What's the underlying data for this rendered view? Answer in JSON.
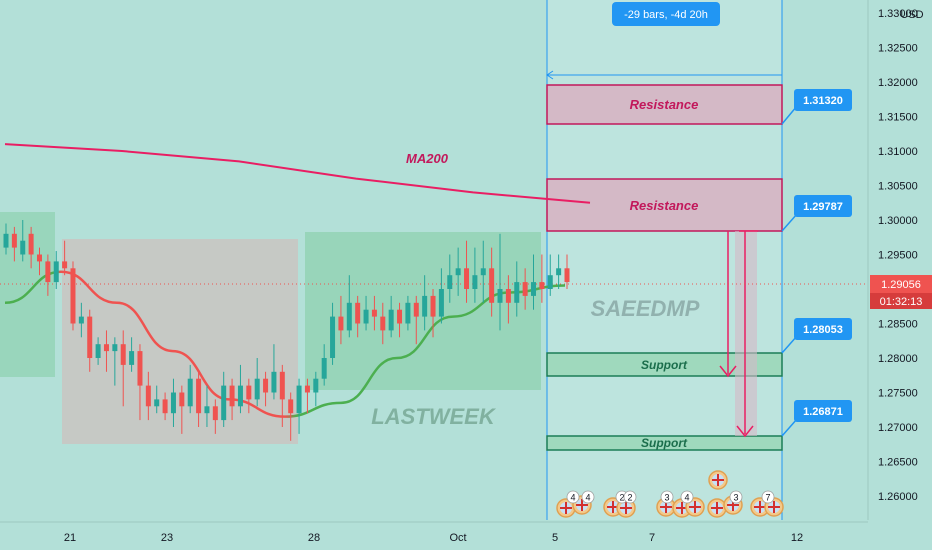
{
  "price_axis": {
    "currency": "USD",
    "ticks": [
      "1.33000",
      "1.32500",
      "1.32000",
      "1.31500",
      "1.31000",
      "1.30500",
      "1.30000",
      "1.29500",
      "1.29000",
      "1.28500",
      "1.28000",
      "1.27500",
      "1.27000",
      "1.26500",
      "1.26000"
    ],
    "current_price": "1.29056",
    "countdown": "01:32:13"
  },
  "time_axis": {
    "ticks": [
      "21",
      "23",
      "28",
      "Oct",
      "5",
      "7",
      "12"
    ]
  },
  "measure_label": "-29 bars, -4d 20h",
  "levels": [
    {
      "label": "Resistance",
      "value": "1.31320"
    },
    {
      "label": "Resistance",
      "value": "1.29787"
    },
    {
      "label": "Support",
      "value": "1.28053"
    },
    {
      "label": "Support",
      "value": "1.26871"
    }
  ],
  "annotations": {
    "ma_label": "MA200",
    "watermark": "SAEEDMP",
    "lastweek": "LASTWEEK"
  },
  "event_badges": [
    "4",
    "4",
    "2",
    "2",
    "3",
    "4",
    "3",
    "7"
  ],
  "colors": {
    "background": "#b3e0d8",
    "up": "#26a69a",
    "down": "#ef5350",
    "ma200": "#e91e63",
    "accent": "#2196f3",
    "current_price": "#ef5350"
  },
  "chart_data": {
    "type": "candlestick",
    "symbol_quote": "USD",
    "y_range": [
      1.255,
      1.331
    ],
    "x_labels": [
      "21",
      "23",
      "28",
      "Oct",
      "5",
      "7",
      "12"
    ],
    "series": [
      {
        "name": "MA200",
        "points": [
          1.311,
          1.31,
          1.3085,
          1.306,
          1.304,
          1.3025
        ]
      },
      {
        "name": "",
        "points": [
          1.288,
          1.2925,
          1.288,
          1.281,
          1.274,
          1.2715,
          1.2735,
          1.28,
          1.286,
          1.2895,
          1.2905
        ]
      }
    ],
    "candles": [
      [
        1.296,
        1.298,
        1.295,
        1.2995
      ],
      [
        1.298,
        1.296,
        1.294,
        1.299
      ],
      [
        1.295,
        1.297,
        1.294,
        1.3
      ],
      [
        1.298,
        1.295,
        1.293,
        1.299
      ],
      [
        1.295,
        1.294,
        1.292,
        1.296
      ],
      [
        1.294,
        1.291,
        1.289,
        1.295
      ],
      [
        1.291,
        1.294,
        1.29,
        1.2955
      ],
      [
        1.294,
        1.293,
        1.292,
        1.297
      ],
      [
        1.293,
        1.285,
        1.284,
        1.294
      ],
      [
        1.285,
        1.286,
        1.283,
        1.288
      ],
      [
        1.286,
        1.28,
        1.278,
        1.287
      ],
      [
        1.28,
        1.282,
        1.279,
        1.283
      ],
      [
        1.282,
        1.281,
        1.278,
        1.284
      ],
      [
        1.281,
        1.282,
        1.276,
        1.283
      ],
      [
        1.282,
        1.279,
        1.273,
        1.284
      ],
      [
        1.279,
        1.281,
        1.278,
        1.283
      ],
      [
        1.281,
        1.276,
        1.271,
        1.282
      ],
      [
        1.276,
        1.273,
        1.271,
        1.278
      ],
      [
        1.273,
        1.274,
        1.272,
        1.276
      ],
      [
        1.274,
        1.272,
        1.271,
        1.275
      ],
      [
        1.272,
        1.275,
        1.27,
        1.277
      ],
      [
        1.275,
        1.273,
        1.269,
        1.276
      ],
      [
        1.273,
        1.277,
        1.272,
        1.279
      ],
      [
        1.277,
        1.272,
        1.27,
        1.278
      ],
      [
        1.272,
        1.273,
        1.27,
        1.276
      ],
      [
        1.273,
        1.271,
        1.269,
        1.274
      ],
      [
        1.271,
        1.276,
        1.27,
        1.278
      ],
      [
        1.276,
        1.273,
        1.271,
        1.277
      ],
      [
        1.273,
        1.276,
        1.272,
        1.279
      ],
      [
        1.276,
        1.274,
        1.272,
        1.277
      ],
      [
        1.274,
        1.277,
        1.273,
        1.28
      ],
      [
        1.277,
        1.275,
        1.273,
        1.278
      ],
      [
        1.275,
        1.278,
        1.274,
        1.282
      ],
      [
        1.278,
        1.274,
        1.27,
        1.279
      ],
      [
        1.274,
        1.272,
        1.268,
        1.275
      ],
      [
        1.272,
        1.276,
        1.269,
        1.277
      ],
      [
        1.276,
        1.275,
        1.272,
        1.277
      ],
      [
        1.275,
        1.277,
        1.273,
        1.278
      ],
      [
        1.277,
        1.28,
        1.276,
        1.282
      ],
      [
        1.28,
        1.286,
        1.279,
        1.288
      ],
      [
        1.286,
        1.284,
        1.282,
        1.289
      ],
      [
        1.284,
        1.288,
        1.283,
        1.292
      ],
      [
        1.288,
        1.285,
        1.283,
        1.289
      ],
      [
        1.285,
        1.287,
        1.284,
        1.289
      ],
      [
        1.287,
        1.286,
        1.284,
        1.289
      ],
      [
        1.286,
        1.284,
        1.282,
        1.288
      ],
      [
        1.284,
        1.287,
        1.283,
        1.289
      ],
      [
        1.287,
        1.285,
        1.283,
        1.288
      ],
      [
        1.285,
        1.288,
        1.284,
        1.289
      ],
      [
        1.288,
        1.286,
        1.282,
        1.289
      ],
      [
        1.286,
        1.289,
        1.284,
        1.292
      ],
      [
        1.289,
        1.286,
        1.283,
        1.29
      ],
      [
        1.286,
        1.29,
        1.285,
        1.293
      ],
      [
        1.29,
        1.292,
        1.288,
        1.295
      ],
      [
        1.292,
        1.293,
        1.289,
        1.296
      ],
      [
        1.293,
        1.29,
        1.288,
        1.297
      ],
      [
        1.29,
        1.292,
        1.288,
        1.296
      ],
      [
        1.292,
        1.293,
        1.288,
        1.297
      ],
      [
        1.293,
        1.288,
        1.286,
        1.296
      ],
      [
        1.288,
        1.29,
        1.284,
        1.298
      ],
      [
        1.29,
        1.288,
        1.285,
        1.292
      ],
      [
        1.288,
        1.291,
        1.286,
        1.294
      ],
      [
        1.291,
        1.289,
        1.287,
        1.293
      ],
      [
        1.289,
        1.291,
        1.287,
        1.295
      ],
      [
        1.291,
        1.29,
        1.288,
        1.295
      ],
      [
        1.29,
        1.292,
        1.289,
        1.295
      ],
      [
        1.292,
        1.293,
        1.29,
        1.295
      ],
      [
        1.293,
        1.291,
        1.29,
        1.295
      ]
    ]
  }
}
